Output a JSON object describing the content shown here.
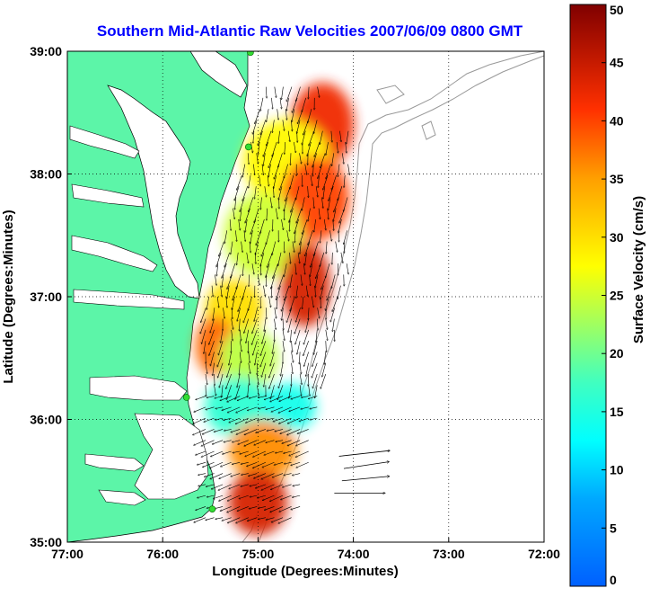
{
  "chart_data": {
    "type": "heatmap",
    "title": "Southern Mid-Atlantic Raw Velocities 2007/06/09 0800 GMT",
    "xlabel": "Longitude (Degrees:Minutes)",
    "ylabel": "Latitude (Degrees:Minutes)",
    "colorbar_label": "Surface Velocity (cm/s)",
    "xlim": [
      -77,
      -72
    ],
    "ylim": [
      35,
      39
    ],
    "x_ticks": [
      -77,
      -76,
      -75,
      -74,
      -73,
      -72
    ],
    "x_tick_labels": [
      "77:00",
      "76:00",
      "75:00",
      "74:00",
      "73:00",
      "72:00"
    ],
    "y_ticks": [
      35,
      36,
      37,
      38,
      39
    ],
    "y_tick_labels": [
      "35:00",
      "36:00",
      "37:00",
      "38:00",
      "39:00"
    ],
    "colorbar_range": [
      0,
      50
    ],
    "colorbar_ticks": [
      0,
      5,
      10,
      15,
      20,
      25,
      30,
      35,
      40,
      45,
      50
    ],
    "colorbar_tick_labels": [
      "0",
      "5",
      "10",
      "15",
      "20",
      "25",
      "30",
      "35",
      "40",
      "45",
      "50"
    ],
    "grid": true,
    "grid_style": "dotted",
    "colormap": "jet",
    "land_color": "#5cf5a8",
    "title_color": "#0000ff",
    "station_color": "#33dd33",
    "stations": [
      {
        "lon": -75.08,
        "lat": 38.99
      },
      {
        "lon": -75.1,
        "lat": 38.22
      },
      {
        "lon": -75.75,
        "lat": 36.18
      },
      {
        "lon": -75.48,
        "lat": 35.27
      }
    ],
    "velocity_regions": [
      {
        "lon": [
          -74.6,
          -74.05
        ],
        "lat": [
          38.1,
          38.7
        ],
        "speed": 42
      },
      {
        "lon": [
          -75.1,
          -74.3
        ],
        "lat": [
          37.8,
          38.4
        ],
        "speed": 28
      },
      {
        "lon": [
          -74.7,
          -74.1
        ],
        "lat": [
          37.5,
          38.1
        ],
        "speed": 40
      },
      {
        "lon": [
          -75.3,
          -74.6
        ],
        "lat": [
          37.2,
          37.8
        ],
        "speed": 25
      },
      {
        "lon": [
          -74.7,
          -74.3
        ],
        "lat": [
          36.8,
          37.4
        ],
        "speed": 44
      },
      {
        "lon": [
          -75.5,
          -75.0
        ],
        "lat": [
          36.7,
          37.1
        ],
        "speed": 30
      },
      {
        "lon": [
          -75.6,
          -75.3
        ],
        "lat": [
          36.4,
          36.8
        ],
        "speed": 38
      },
      {
        "lon": [
          -75.35,
          -74.85
        ],
        "lat": [
          36.3,
          36.7
        ],
        "speed": 24
      },
      {
        "lon": [
          -75.5,
          -74.9
        ],
        "lat": [
          35.9,
          36.3
        ],
        "speed": 16
      },
      {
        "lon": [
          -74.9,
          -74.45
        ],
        "lat": [
          35.95,
          36.25
        ],
        "speed": 14
      },
      {
        "lon": [
          -75.25,
          -74.65
        ],
        "lat": [
          35.55,
          35.95
        ],
        "speed": 36
      },
      {
        "lon": [
          -75.25,
          -74.75
        ],
        "lat": [
          35.1,
          35.55
        ],
        "speed": 44
      }
    ],
    "scale_vectors": [
      {
        "lon": -74.15,
        "lat": 35.7,
        "u": 45,
        "v": 5
      },
      {
        "lon": -74.1,
        "lat": 35.6,
        "u": 40,
        "v": 6
      },
      {
        "lon": -74.12,
        "lat": 35.5,
        "u": 42,
        "v": 4
      },
      {
        "lon": -74.2,
        "lat": 35.4,
        "u": 45,
        "v": 0
      }
    ],
    "vector_field": [
      {
        "lon": [
          -75.5,
          -74.1
        ],
        "lat": [
          35.2,
          38.8
        ],
        "u": -5,
        "v": -35
      }
    ]
  }
}
